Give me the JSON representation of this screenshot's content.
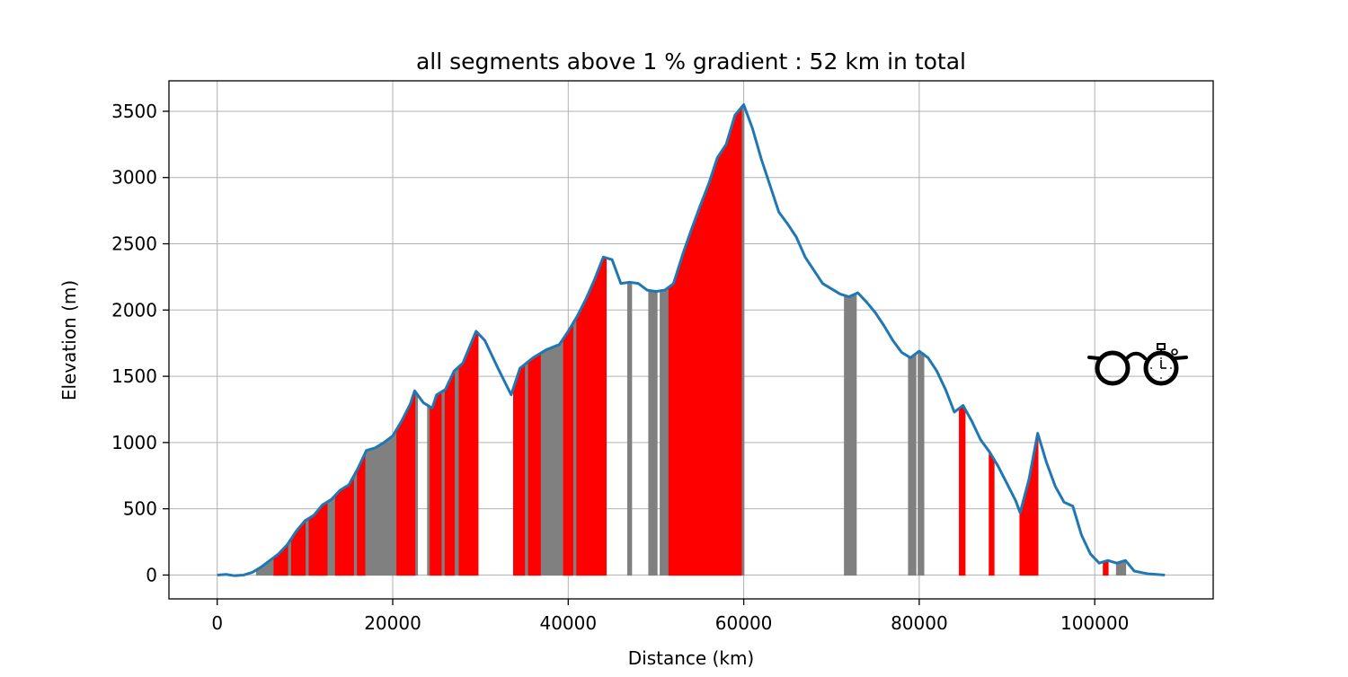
{
  "chart_data": {
    "type": "area",
    "title": "all segments above 1 % gradient : 52 km in total",
    "xlabel": "Distance (km)",
    "ylabel": "Elevation (m)",
    "xlim": [
      -5500,
      113500
    ],
    "ylim": [
      -180,
      3730
    ],
    "x_ticks": [
      0,
      20000,
      40000,
      60000,
      80000,
      100000
    ],
    "x_tick_labels": [
      "0",
      "20000",
      "40000",
      "60000",
      "80000",
      "100000"
    ],
    "y_ticks": [
      0,
      500,
      1000,
      1500,
      2000,
      2500,
      3000,
      3500
    ],
    "y_tick_labels": [
      "0",
      "500",
      "1000",
      "1500",
      "2000",
      "2500",
      "3000",
      "3500"
    ],
    "grid": true,
    "series": [
      {
        "color": "#1f77b4",
        "points": [
          [
            0,
            0
          ],
          [
            1000,
            5
          ],
          [
            2000,
            -5
          ],
          [
            3000,
            0
          ],
          [
            4000,
            20
          ],
          [
            5000,
            60
          ],
          [
            6000,
            110
          ],
          [
            7000,
            160
          ],
          [
            8000,
            230
          ],
          [
            9000,
            330
          ],
          [
            10000,
            410
          ],
          [
            11000,
            450
          ],
          [
            12000,
            530
          ],
          [
            13000,
            570
          ],
          [
            14000,
            640
          ],
          [
            15000,
            680
          ],
          [
            16000,
            800
          ],
          [
            17000,
            940
          ],
          [
            18000,
            960
          ],
          [
            19000,
            1000
          ],
          [
            20000,
            1050
          ],
          [
            21000,
            1160
          ],
          [
            22000,
            1290
          ],
          [
            22500,
            1390
          ],
          [
            23500,
            1300
          ],
          [
            24500,
            1260
          ],
          [
            25000,
            1360
          ],
          [
            26000,
            1400
          ],
          [
            27000,
            1540
          ],
          [
            28000,
            1600
          ],
          [
            29500,
            1840
          ],
          [
            30500,
            1770
          ],
          [
            32000,
            1560
          ],
          [
            33500,
            1360
          ],
          [
            34500,
            1560
          ],
          [
            36000,
            1640
          ],
          [
            37500,
            1700
          ],
          [
            39000,
            1740
          ],
          [
            40000,
            1840
          ],
          [
            41000,
            1950
          ],
          [
            42000,
            2080
          ],
          [
            43000,
            2230
          ],
          [
            44000,
            2400
          ],
          [
            45000,
            2380
          ],
          [
            46000,
            2200
          ],
          [
            47000,
            2210
          ],
          [
            48000,
            2200
          ],
          [
            49000,
            2150
          ],
          [
            50000,
            2140
          ],
          [
            51000,
            2150
          ],
          [
            52000,
            2200
          ],
          [
            53000,
            2410
          ],
          [
            54000,
            2600
          ],
          [
            55000,
            2780
          ],
          [
            56000,
            2950
          ],
          [
            57000,
            3150
          ],
          [
            58000,
            3250
          ],
          [
            59000,
            3470
          ],
          [
            60000,
            3550
          ],
          [
            61000,
            3370
          ],
          [
            62000,
            3140
          ],
          [
            63000,
            2940
          ],
          [
            64000,
            2740
          ],
          [
            65000,
            2650
          ],
          [
            66000,
            2550
          ],
          [
            67000,
            2400
          ],
          [
            68000,
            2300
          ],
          [
            69000,
            2200
          ],
          [
            70000,
            2160
          ],
          [
            71000,
            2120
          ],
          [
            72000,
            2100
          ],
          [
            73000,
            2130
          ],
          [
            74000,
            2060
          ],
          [
            75000,
            1980
          ],
          [
            76000,
            1880
          ],
          [
            77000,
            1770
          ],
          [
            78000,
            1680
          ],
          [
            79000,
            1640
          ],
          [
            80000,
            1690
          ],
          [
            81000,
            1640
          ],
          [
            82000,
            1540
          ],
          [
            83000,
            1400
          ],
          [
            84000,
            1230
          ],
          [
            85000,
            1280
          ],
          [
            86000,
            1160
          ],
          [
            87000,
            1020
          ],
          [
            88000,
            930
          ],
          [
            89000,
            820
          ],
          [
            90000,
            690
          ],
          [
            91000,
            560
          ],
          [
            91500,
            470
          ],
          [
            92500,
            720
          ],
          [
            93500,
            1070
          ],
          [
            94500,
            850
          ],
          [
            95500,
            670
          ],
          [
            96500,
            550
          ],
          [
            97500,
            520
          ],
          [
            98500,
            300
          ],
          [
            99500,
            160
          ],
          [
            100500,
            90
          ],
          [
            101500,
            110
          ],
          [
            102500,
            90
          ],
          [
            103500,
            110
          ],
          [
            104500,
            30
          ],
          [
            106000,
            10
          ],
          [
            108000,
            0
          ]
        ]
      }
    ],
    "segments_red": [
      [
        6500,
        8000
      ],
      [
        8500,
        10000
      ],
      [
        10500,
        12500
      ],
      [
        13500,
        15500
      ],
      [
        16000,
        16800
      ],
      [
        20500,
        22500
      ],
      [
        24300,
        25500
      ],
      [
        26000,
        27000
      ],
      [
        27600,
        29700
      ],
      [
        33800,
        35000
      ],
      [
        35500,
        36800
      ],
      [
        39500,
        40500
      ],
      [
        41000,
        44300
      ],
      [
        51500,
        59700
      ],
      [
        84600,
        85200
      ],
      [
        88000,
        88500
      ],
      [
        91500,
        93500
      ],
      [
        101000,
        101500
      ]
    ],
    "segments_gray": [
      [
        4500,
        6500
      ],
      [
        8000,
        8500
      ],
      [
        10000,
        10500
      ],
      [
        12500,
        13500
      ],
      [
        15500,
        16000
      ],
      [
        16800,
        20500
      ],
      [
        22500,
        22800
      ],
      [
        24000,
        24300
      ],
      [
        25500,
        26000
      ],
      [
        27000,
        27600
      ],
      [
        35000,
        35500
      ],
      [
        36800,
        39500
      ],
      [
        40500,
        41000
      ],
      [
        46800,
        47200
      ],
      [
        49200,
        50100
      ],
      [
        50500,
        51500
      ],
      [
        59700,
        60000
      ],
      [
        71500,
        72800
      ],
      [
        78800,
        79600
      ],
      [
        79900,
        80500
      ],
      [
        102500,
        103500
      ]
    ],
    "legend": "none",
    "logo": "glasses-stopwatch-icon"
  }
}
